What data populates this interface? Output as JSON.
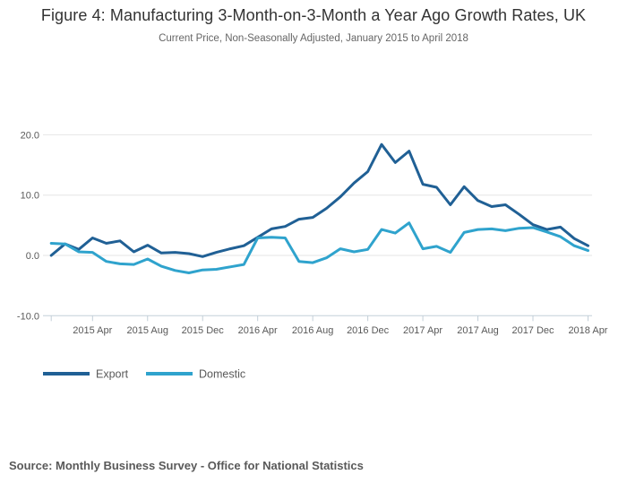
{
  "title": "Figure 4: Manufacturing 3-Month-on-3-Month a Year Ago Growth Rates, UK",
  "subtitle": "Current Price, Non-Seasonally Adjusted, January 2015 to April 2018",
  "source": "Source: Monthly Business Survey - Office for National Statistics",
  "colors": {
    "export_line": "#206095",
    "domestic_line": "#2FA3CD",
    "gridline": "#E6E6E6",
    "axis": "#C3CfD8",
    "axis_label": "#595959",
    "legend_label": "#595959"
  },
  "chart_data": {
    "type": "line",
    "title": "Figure 4: Manufacturing 3-Month-on-3-Month a Year Ago Growth Rates, UK",
    "subtitle": "Current Price, Non-Seasonally Adjusted, January 2015 to April 2018",
    "grid": true,
    "legend_position": "bottom-left",
    "ylim": [
      -10,
      20
    ],
    "y_ticks": [
      20,
      10,
      0,
      -10
    ],
    "y_tick_labels": [
      "20.0",
      "10.0",
      "0.0",
      "-10.0"
    ],
    "x_tick_label_indices": [
      3,
      7,
      11,
      15,
      19,
      23,
      27,
      31,
      35,
      39
    ],
    "x_tick_labels": [
      "2015 Apr",
      "2015 Aug",
      "2015 Dec",
      "2016 Apr",
      "2016 Aug",
      "2016 Dec",
      "2017 Apr",
      "2017 Aug",
      "2017 Dec",
      "2018 Apr"
    ],
    "x": [
      "2015 Jan",
      "2015 Feb",
      "2015 Mar",
      "2015 Apr",
      "2015 May",
      "2015 Jun",
      "2015 Jul",
      "2015 Aug",
      "2015 Sep",
      "2015 Oct",
      "2015 Nov",
      "2015 Dec",
      "2016 Jan",
      "2016 Feb",
      "2016 Mar",
      "2016 Apr",
      "2016 May",
      "2016 Jun",
      "2016 Jul",
      "2016 Aug",
      "2016 Sep",
      "2016 Oct",
      "2016 Nov",
      "2016 Dec",
      "2017 Jan",
      "2017 Feb",
      "2017 Mar",
      "2017 Apr",
      "2017 May",
      "2017 Jun",
      "2017 Jul",
      "2017 Aug",
      "2017 Sep",
      "2017 Oct",
      "2017 Nov",
      "2017 Dec",
      "2018 Jan",
      "2018 Feb",
      "2018 Mar",
      "2018 Apr"
    ],
    "series": [
      {
        "name": "Export",
        "color": "#206095",
        "values": [
          0.0,
          1.9,
          1.0,
          2.9,
          2.0,
          2.4,
          0.6,
          1.7,
          0.4,
          0.5,
          0.3,
          -0.2,
          0.5,
          1.1,
          1.6,
          3.0,
          4.4,
          4.8,
          6.0,
          6.3,
          7.8,
          9.7,
          12.0,
          13.9,
          18.4,
          15.4,
          17.3,
          11.8,
          11.3,
          8.4,
          11.4,
          9.1,
          8.1,
          8.4,
          6.8,
          5.1,
          4.3,
          4.7,
          2.8,
          1.6
        ]
      },
      {
        "name": "Domestic",
        "color": "#2FA3CD",
        "values": [
          2.0,
          1.9,
          0.6,
          0.5,
          -1.0,
          -1.4,
          -1.5,
          -0.6,
          -1.8,
          -2.5,
          -2.9,
          -2.4,
          -2.3,
          -1.9,
          -1.5,
          2.9,
          3.0,
          2.9,
          -1.0,
          -1.2,
          -0.4,
          1.1,
          0.6,
          1.0,
          4.3,
          3.7,
          5.4,
          1.1,
          1.5,
          0.5,
          3.8,
          4.3,
          4.4,
          4.1,
          4.5,
          4.6,
          3.9,
          3.1,
          1.6,
          0.8
        ]
      }
    ],
    "legend": [
      {
        "label": "Export"
      },
      {
        "label": "Domestic"
      }
    ]
  }
}
